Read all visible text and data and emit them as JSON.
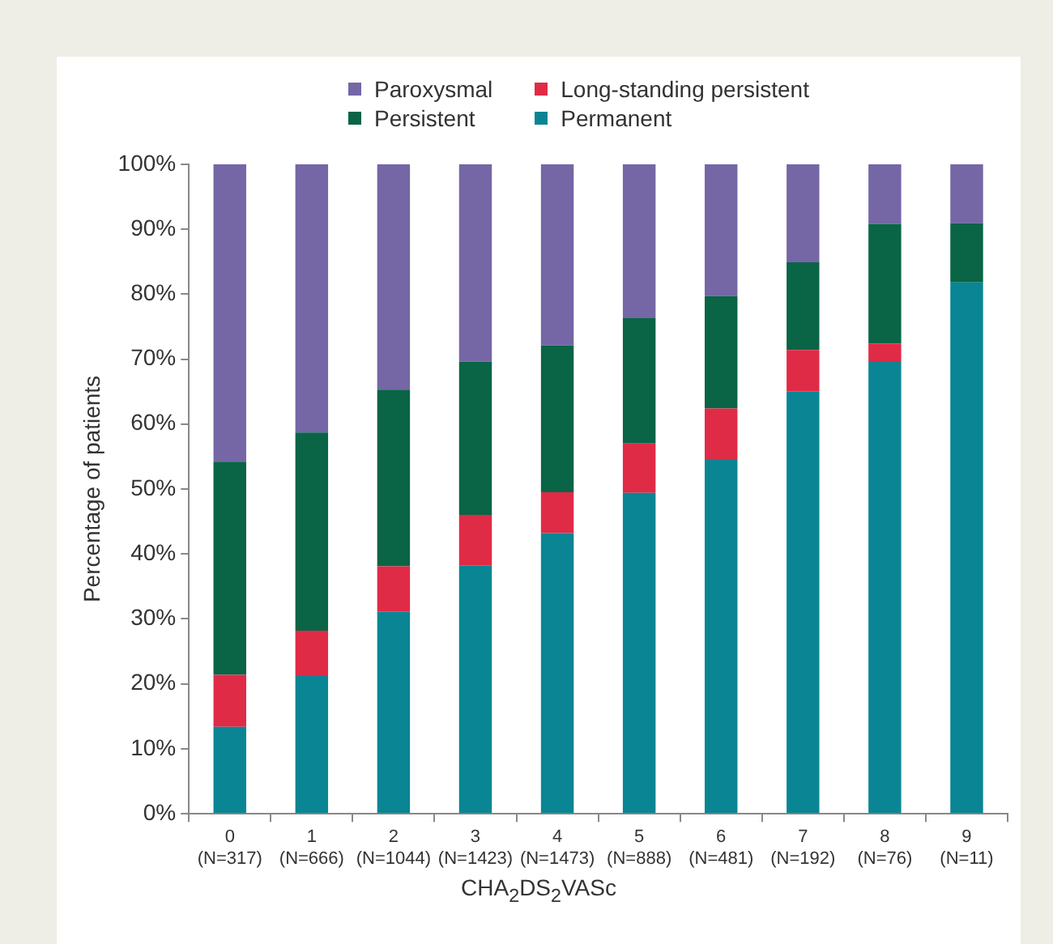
{
  "chart_data": {
    "type": "bar",
    "stacked": true,
    "legend": "top",
    "ylabel": "Percentage of patients",
    "xlabel": "CHA$_{2}$DS$_{2}$VASc",
    "categories": [
      "0\n(N=317)",
      "1\n(N=666)",
      "2\n(N=1044)",
      "3\n(N=1423)",
      "4\n(N=1473)",
      "5\n(N=888)",
      "6\n(N=481)",
      "7\n(N=192)",
      "8\n(N=76)",
      "9\n(N=11)"
    ],
    "series": [
      {
        "name": "Permanent",
        "color": "#0a8594",
        "values": [
          13.4,
          21.2,
          31.1,
          38.2,
          43.2,
          49.4,
          54.6,
          65.0,
          69.7,
          81.8
        ]
      },
      {
        "name": "Long-standing persistent",
        "color": "#e02b47",
        "values": [
          8.0,
          7.0,
          7.0,
          7.8,
          6.3,
          7.6,
          7.8,
          6.4,
          2.7,
          0
        ]
      },
      {
        "name": "Persistent",
        "color": "#0a6446",
        "values": [
          32.8,
          30.5,
          27.2,
          23.6,
          22.6,
          19.3,
          17.3,
          13.5,
          18.4,
          9.1
        ]
      },
      {
        "name": "Paroxysmal",
        "color": "#7566a6",
        "values": [
          45.8,
          41.3,
          34.7,
          30.4,
          27.9,
          23.7,
          20.3,
          15.1,
          9.2,
          9.1
        ]
      }
    ],
    "ylim": [
      0,
      100
    ],
    "yticks": [
      {
        "value": 0,
        "label": "0%"
      },
      {
        "value": 10,
        "label": "10%"
      },
      {
        "value": 20,
        "label": "20%"
      },
      {
        "value": 30,
        "label": "30%"
      },
      {
        "value": 40,
        "label": "40%"
      },
      {
        "value": 50,
        "label": "50%"
      },
      {
        "value": 60,
        "label": "60%"
      },
      {
        "value": 70,
        "label": "70%"
      },
      {
        "value": 80,
        "label": "80%"
      },
      {
        "value": 90,
        "label": "90%"
      },
      {
        "value": 100,
        "label": "100%"
      }
    ],
    "grid": false
  }
}
